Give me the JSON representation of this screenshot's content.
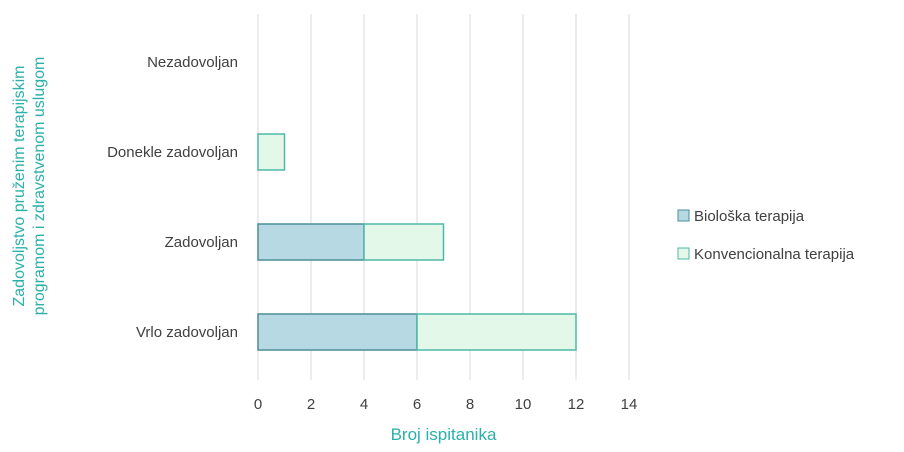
{
  "chart_data": {
    "type": "bar",
    "orientation": "horizontal",
    "stacked": true,
    "categories": [
      "Nezadovoljan",
      "Donekle zadovoljan",
      "Zadovoljan",
      "Vrlo zadovoljan"
    ],
    "series": [
      {
        "name": "Biološka terapija",
        "values": [
          0,
          0,
          4,
          6
        ],
        "color": "#b7d9e3",
        "stroke": "#4a8f99"
      },
      {
        "name": "Konvencionalna terapija",
        "values": [
          0,
          1,
          3,
          6
        ],
        "color": "#e3f8e8",
        "stroke": "#4fb8a8"
      }
    ],
    "xlabel": "Broj ispitanika",
    "ylabel": "Zadovoljstvo pruženim terapijskim programom i zdravstvenom uslugom",
    "ylabel_lines": [
      "Zadovoljstvo pruženim terapijskim",
      "programom i zdravstvenom uslugom"
    ],
    "xlim": [
      0,
      14
    ],
    "xticks": [
      0,
      2,
      4,
      6,
      8,
      10,
      12,
      14
    ],
    "grid": true,
    "legend": "right",
    "axis_title_color": "#2bb0aa",
    "tick_label_color": "#404040",
    "gridline_color": "#d9d9d9"
  }
}
